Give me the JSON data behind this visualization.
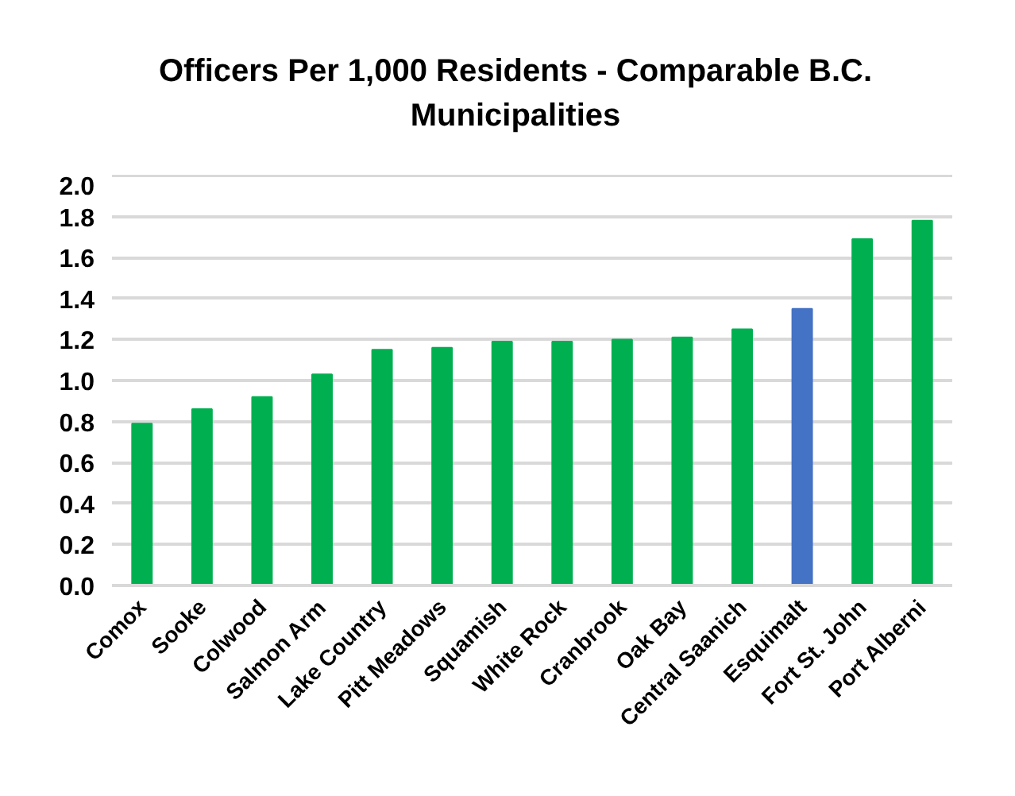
{
  "chart_data": {
    "type": "bar",
    "title": "Officers Per 1,000 Residents - Comparable B.C. Municipalities",
    "categories": [
      "Comox",
      "Sooke",
      "Colwood",
      "Salmon Arm",
      "Lake Country",
      "Pitt Meadows",
      "Squamish",
      "White Rock",
      "Cranbrook",
      "Oak Bay",
      "Central Saanich",
      "Esquimalt",
      "Fort St. John",
      "Port Alberni"
    ],
    "values": [
      0.79,
      0.86,
      0.92,
      1.03,
      1.15,
      1.16,
      1.19,
      1.19,
      1.2,
      1.21,
      1.25,
      1.35,
      1.69,
      1.78
    ],
    "colors": [
      "#00b050",
      "#00b050",
      "#00b050",
      "#00b050",
      "#00b050",
      "#00b050",
      "#00b050",
      "#00b050",
      "#00b050",
      "#00b050",
      "#00b050",
      "#4472c4",
      "#00b050",
      "#00b050"
    ],
    "ylim": [
      0,
      2.0
    ],
    "yticks": [
      {
        "value": 0,
        "label": "0.0"
      },
      0.2,
      0.4,
      0.6,
      0.8,
      {
        "value": 1,
        "label": "1.0"
      },
      1.2,
      1.4,
      1.6,
      1.8,
      {
        "value": 2,
        "label": "2.0"
      }
    ],
    "grid": "y"
  }
}
